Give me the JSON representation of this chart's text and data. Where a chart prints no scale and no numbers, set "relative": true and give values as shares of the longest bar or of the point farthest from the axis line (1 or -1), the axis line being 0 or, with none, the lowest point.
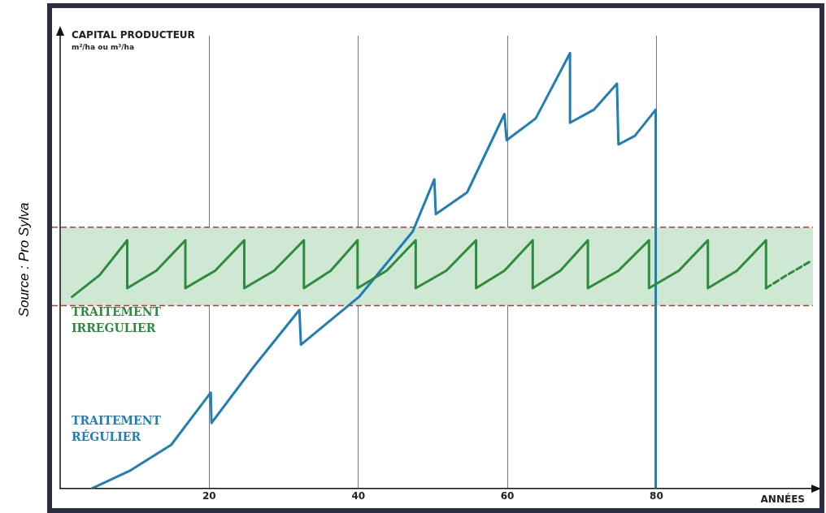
{
  "chart_data": {
    "type": "line",
    "relative": true,
    "ylabel": "CAPITAL PRODUCTEUR\nm²/ha ou m³/ha",
    "xlabel": "ANNÉES",
    "xlim": [
      0,
      101
    ],
    "xticks": [
      20,
      40,
      60,
      80
    ],
    "grid": "x",
    "legend": false,
    "marker": "none",
    "line_style": "solid",
    "tick_labels": "x",
    "bands": [
      {
        "axis": "y",
        "from": 0.42,
        "to": 0.6,
        "color": "#cfe8d3"
      }
    ],
    "ref_lines": [
      {
        "axis": "y",
        "value": 0.42,
        "color": "#b03a3a",
        "line_style": "dashed"
      },
      {
        "axis": "y",
        "value": 0.6,
        "color": "#b03a3a",
        "line_style": "dashed"
      }
    ],
    "annotations": [
      "Source : Pro Sylva"
    ],
    "series": [
      {
        "name": "TRAITEMENT IRREGULIER",
        "color": "#2e8b3e",
        "x": [
          1.6,
          5.3,
          9.0,
          9.0,
          12.9,
          16.8,
          16.8,
          20.8,
          24.7,
          24.7,
          28.7,
          32.7,
          32.7,
          36.3,
          39.9,
          39.9,
          43.8,
          47.7,
          47.7,
          51.8,
          55.8,
          55.8,
          59.6,
          63.4,
          63.4,
          67.1,
          70.8,
          70.8,
          74.9,
          79.0,
          79.0,
          83.0,
          86.9,
          86.9,
          90.8,
          94.7,
          94.7
        ],
        "values": [
          0.44,
          0.49,
          0.57,
          0.46,
          0.5,
          0.57,
          0.46,
          0.5,
          0.57,
          0.46,
          0.5,
          0.57,
          0.46,
          0.5,
          0.57,
          0.46,
          0.5,
          0.57,
          0.46,
          0.5,
          0.57,
          0.46,
          0.5,
          0.57,
          0.46,
          0.5,
          0.57,
          0.46,
          0.5,
          0.57,
          0.46,
          0.5,
          0.57,
          0.46,
          0.5,
          0.57,
          0.46
        ]
      },
      {
        "color": "#2e8b3e",
        "line_style": "dashed",
        "x": [
          94.7,
          97.5,
          100.5
        ],
        "values": [
          0.46,
          0.49,
          0.52
        ]
      },
      {
        "name": "TRAITEMENT RÉGULIER",
        "color": "#1f7fb5",
        "x": [
          4.3,
          9.3,
          14.9,
          20.2,
          20.3,
          26.0,
          32.1,
          32.3,
          40.1,
          47.3,
          50.2,
          50.4,
          54.6,
          59.6,
          59.9,
          63.8,
          68.4,
          68.4,
          71.6,
          74.7,
          74.9,
          77.1,
          79.9,
          79.9
        ],
        "values": [
          0,
          0.04,
          0.1,
          0.22,
          0.15,
          0.28,
          0.41,
          0.33,
          0.44,
          0.59,
          0.71,
          0.63,
          0.68,
          0.86,
          0.8,
          0.85,
          1,
          0.84,
          0.87,
          0.93,
          0.79,
          0.81,
          0.87,
          0
        ]
      }
    ]
  }
}
